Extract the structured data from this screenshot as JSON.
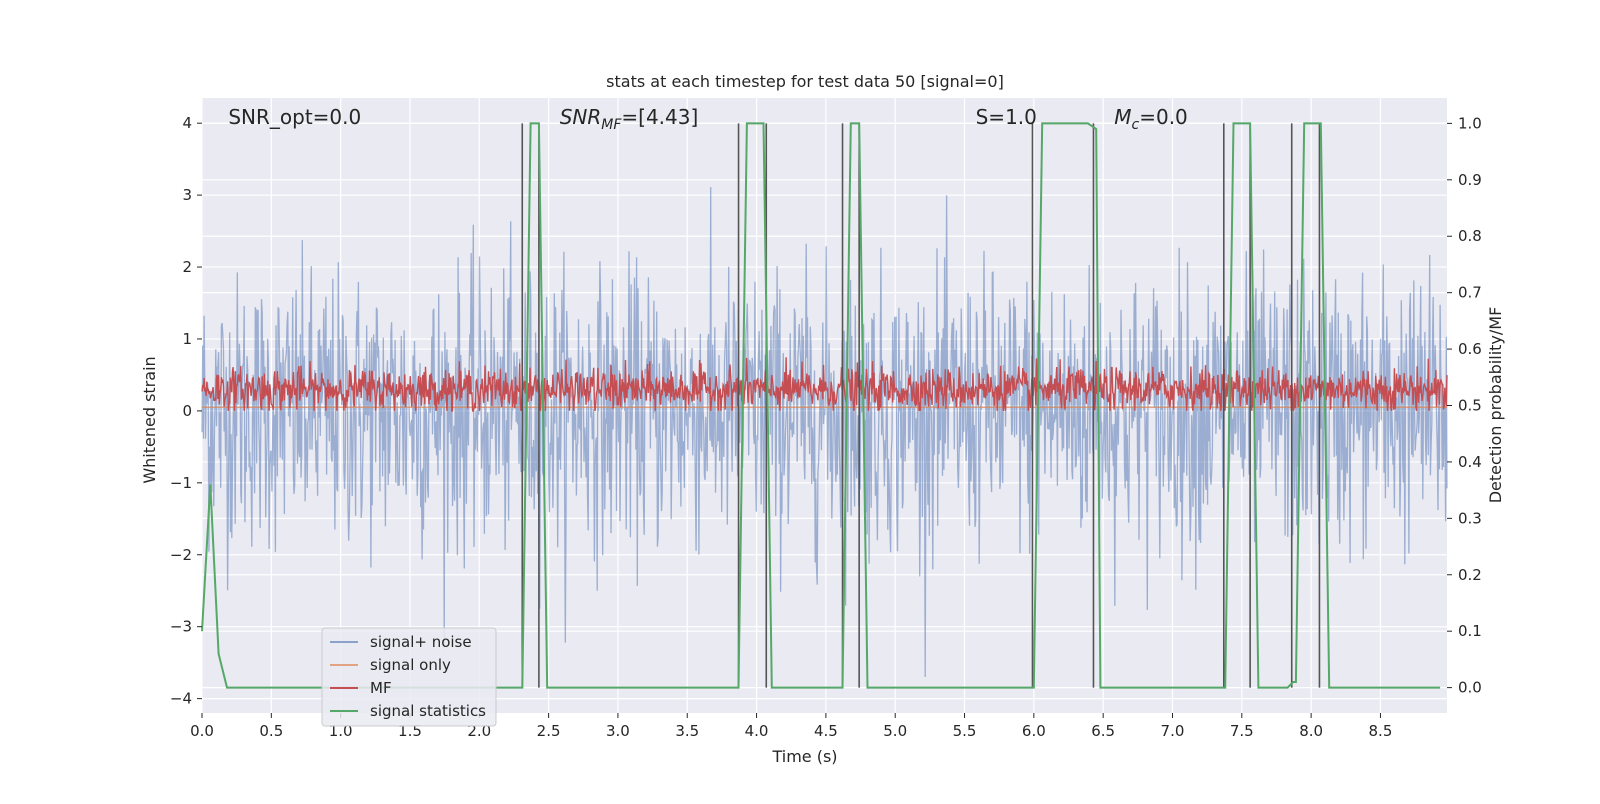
{
  "chart_data": {
    "type": "line",
    "title": "stats at each timestep for test data 50 [signal=0]",
    "xlabel": "Time (s)",
    "ylabel": "Whitened strain",
    "y2label": "Detection probability/MF",
    "xlim": [
      0.0,
      8.98
    ],
    "ylim": [
      -4.2,
      4.35
    ],
    "y2lim": [
      -0.045,
      1.045
    ],
    "x_ticks": [
      "0.0",
      "0.5",
      "1.0",
      "1.5",
      "2.0",
      "2.5",
      "3.0",
      "3.5",
      "4.0",
      "4.5",
      "5.0",
      "5.5",
      "6.0",
      "6.5",
      "7.0",
      "7.5",
      "8.0",
      "8.5"
    ],
    "y_ticks": [
      "4",
      "3",
      "2",
      "1",
      "0",
      "−1",
      "−2",
      "−3",
      "−4"
    ],
    "y2_ticks": [
      "1.0",
      "0.9",
      "0.8",
      "0.7",
      "0.6",
      "0.5",
      "0.4",
      "0.3",
      "0.2",
      "0.1",
      "0.0"
    ],
    "grid": true,
    "legend_position": "bottom-left",
    "annotations": [
      {
        "text": "SNR_opt=0.0",
        "x": 0.19,
        "y": 4.0
      },
      {
        "text": "SNR_MF=[4.43]",
        "x": 2.58,
        "y": 4.0
      },
      {
        "text": "S=1.0",
        "x": 5.58,
        "y": 4.0
      },
      {
        "text": "M_c=0.0",
        "x": 6.58,
        "y": 4.0
      }
    ],
    "series": [
      {
        "name": "signal+ noise",
        "axis": "left",
        "color": "#4c72b0",
        "description_note": "white-noise whitened strain sampled densely from 0 to 8.98 s, amplitude roughly ±2.5 with peaks to ±3.6",
        "noise_std": 0.95,
        "samples": 1800
      },
      {
        "name": "signal only",
        "axis": "left",
        "color": "#dd8452",
        "x": [
          0.0,
          8.98
        ],
        "y": [
          0.05,
          0.05
        ]
      },
      {
        "name": "MF",
        "axis": "left",
        "color": "#c44e52",
        "mean": 0.3,
        "noise_std": 0.15,
        "samples": 1800
      },
      {
        "name": "signal statistics",
        "axis": "right",
        "color": "#55a868",
        "x": [
          0.0,
          0.06,
          0.12,
          0.18,
          2.31,
          2.37,
          2.43,
          2.49,
          3.87,
          3.93,
          4.05,
          4.11,
          4.62,
          4.68,
          4.74,
          4.8,
          6.0,
          6.06,
          6.39,
          6.45,
          6.48,
          7.38,
          7.44,
          7.56,
          7.62,
          7.83,
          7.87,
          7.89,
          7.95,
          8.07,
          8.13,
          8.93
        ],
        "y": [
          0.1,
          0.36,
          0.06,
          0.0,
          0.0,
          1.0,
          1.0,
          0.0,
          0.0,
          1.0,
          1.0,
          0.0,
          0.0,
          1.0,
          1.0,
          0.0,
          0.0,
          1.0,
          1.0,
          0.99,
          0.0,
          0.0,
          1.0,
          1.0,
          0.0,
          0.0,
          0.01,
          0.01,
          1.0,
          1.0,
          0.0,
          0.0
        ]
      }
    ],
    "vertical_lines": {
      "color": "#555555",
      "y2_range": [
        0.0,
        1.0
      ],
      "x": [
        2.31,
        2.43,
        3.87,
        4.07,
        4.62,
        4.74,
        5.99,
        6.43,
        7.37,
        7.56,
        7.86,
        8.06
      ]
    },
    "colors": {
      "plot_background": "#eaeaf2",
      "grid": "#ffffff",
      "legend_background": "#eaeaf2",
      "legend_border": "#cccccc"
    }
  }
}
